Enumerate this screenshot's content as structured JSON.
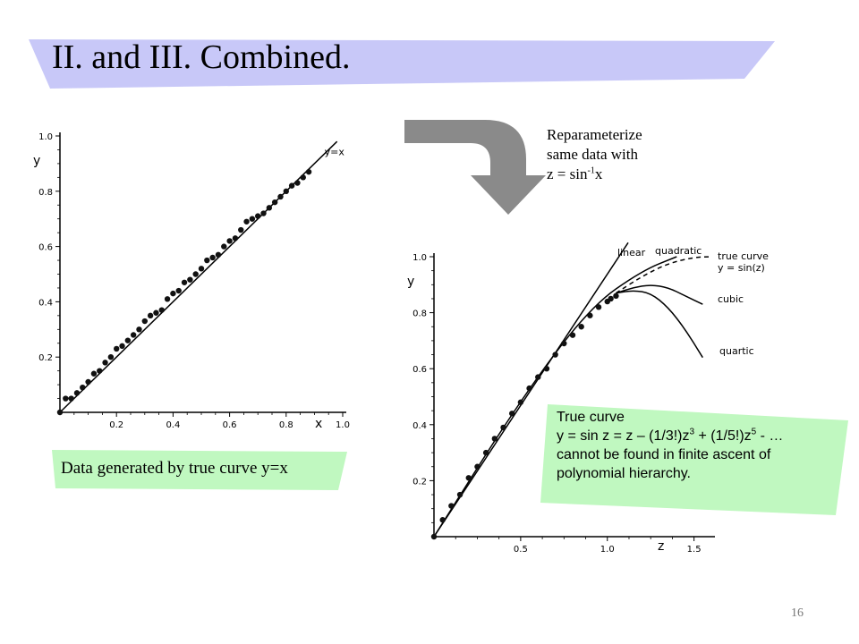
{
  "title": "II. and III. Combined.",
  "note": {
    "line1": "Reparameterize",
    "line2": "same data with",
    "line3_prefix": "z = sin",
    "line3_sup": "-1",
    "line3_suffix": "x"
  },
  "caption": "Data generated by true curve y=x",
  "box": {
    "line1": "True curve",
    "line2_parts": [
      "y = sin z = z – (1/3!)z",
      "3",
      " + (1/5!)z",
      "5",
      " - …"
    ],
    "line3": "cannot be found in finite ascent of",
    "line4": "polynomial hierarchy."
  },
  "page_number": "16",
  "colors": {
    "title_band": "#c8c8f8",
    "green_band": "#c0f8c0",
    "arrow": "#8a8a8a",
    "points": "#111111"
  },
  "chart_data": [
    {
      "type": "scatter",
      "title": "",
      "xlabel": "x",
      "ylabel": "y",
      "xlim": [
        0,
        1.0
      ],
      "ylim": [
        0,
        1.0
      ],
      "x_ticks": [
        "0.2",
        "0.4",
        "0.6",
        "0.8",
        "1.0"
      ],
      "y_ticks": [
        "0.2",
        "0.4",
        "0.6",
        "0.8",
        "1.0"
      ],
      "x_tick_values": [
        0.2,
        0.4,
        0.6,
        0.8,
        1.0
      ],
      "y_tick_values": [
        0.2,
        0.4,
        0.6,
        0.8,
        1.0
      ],
      "series": [
        {
          "x": [
            0,
            0.02,
            0.04,
            0.06,
            0.08,
            0.1,
            0.12,
            0.14,
            0.16,
            0.18,
            0.2,
            0.22,
            0.24,
            0.26,
            0.28,
            0.3,
            0.32,
            0.34,
            0.36,
            0.38,
            0.4,
            0.42,
            0.44,
            0.46,
            0.48,
            0.5,
            0.52,
            0.54,
            0.56,
            0.58,
            0.6,
            0.62,
            0.64,
            0.66,
            0.68,
            0.7,
            0.72,
            0.74,
            0.76,
            0.78,
            0.8,
            0.82,
            0.84,
            0.86,
            0.88
          ],
          "y": [
            0.0,
            0.05,
            0.05,
            0.07,
            0.09,
            0.11,
            0.14,
            0.15,
            0.18,
            0.2,
            0.23,
            0.24,
            0.26,
            0.28,
            0.3,
            0.33,
            0.35,
            0.36,
            0.37,
            0.41,
            0.43,
            0.44,
            0.47,
            0.48,
            0.5,
            0.52,
            0.55,
            0.56,
            0.57,
            0.6,
            0.62,
            0.63,
            0.66,
            0.69,
            0.7,
            0.71,
            0.72,
            0.74,
            0.76,
            0.78,
            0.8,
            0.82,
            0.83,
            0.85,
            0.87
          ]
        }
      ],
      "lines": [
        {
          "label": "y=x",
          "x": [
            0,
            0.98
          ],
          "y": [
            0,
            0.98
          ]
        }
      ]
    },
    {
      "type": "scatter",
      "title": "",
      "xlabel": "z",
      "ylabel": "y",
      "xlim": [
        0,
        1.6
      ],
      "ylim": [
        0,
        1.0
      ],
      "x_ticks": [
        "0.5",
        "1.0",
        "1.5"
      ],
      "y_ticks": [
        "0.2",
        "0.4",
        "0.6",
        "0.8",
        "1.0"
      ],
      "x_tick_values": [
        0.5,
        1.0,
        1.5
      ],
      "y_tick_values": [
        0.2,
        0.4,
        0.6,
        0.8,
        1.0
      ],
      "series": [
        {
          "z": [
            0,
            0.05,
            0.1,
            0.15,
            0.2,
            0.25,
            0.3,
            0.35,
            0.4,
            0.45,
            0.5,
            0.55,
            0.6,
            0.65,
            0.7,
            0.75,
            0.8,
            0.85,
            0.9,
            0.95,
            1.0,
            1.02,
            1.05
          ],
          "y": [
            0.0,
            0.06,
            0.11,
            0.15,
            0.21,
            0.25,
            0.3,
            0.35,
            0.39,
            0.44,
            0.48,
            0.53,
            0.57,
            0.6,
            0.65,
            0.69,
            0.72,
            0.75,
            0.79,
            0.82,
            0.84,
            0.85,
            0.86
          ]
        }
      ],
      "curves": [
        {
          "label": "linear",
          "z": [
            0,
            1.12
          ],
          "y": [
            0,
            1.05
          ]
        },
        {
          "label": "quadratic",
          "z": [
            0,
            0.5,
            0.9,
            1.2,
            1.4
          ],
          "y": [
            0,
            0.49,
            0.82,
            0.95,
            1.0
          ]
        },
        {
          "label": "true curve",
          "label2": "y = sin(z)",
          "style": "dashed",
          "z": [
            1.05,
            1.2,
            1.35,
            1.5,
            1.6
          ],
          "y": [
            0.87,
            0.93,
            0.976,
            0.998,
            1.0
          ]
        },
        {
          "label": "cubic",
          "z": [
            1.05,
            1.15,
            1.25,
            1.35,
            1.45,
            1.55
          ],
          "y": [
            0.87,
            0.89,
            0.9,
            0.89,
            0.86,
            0.83
          ]
        },
        {
          "label": "quartic",
          "z": [
            1.05,
            1.15,
            1.25,
            1.35,
            1.45,
            1.55
          ],
          "y": [
            0.87,
            0.88,
            0.87,
            0.82,
            0.74,
            0.64
          ]
        }
      ]
    }
  ]
}
